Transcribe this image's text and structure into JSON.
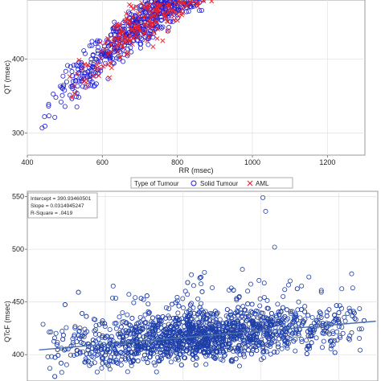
{
  "chart_data": [
    {
      "type": "scatter",
      "xlabel": "RR (msec)",
      "ylabel": "QT (msec)",
      "xlim": [
        400,
        1300
      ],
      "ylim": [
        270,
        480
      ],
      "xticks": [
        400,
        600,
        800,
        1000,
        1200
      ],
      "yticks": [
        300,
        400
      ],
      "grid": true,
      "legend": {
        "title": "Type of Tumour",
        "placement": "bottom"
      },
      "series": [
        {
          "name": "Solid Tumour",
          "marker": "circle-open",
          "color": "#1f1fd6",
          "trend": {
            "x_range": [
              430,
              1290
            ],
            "a": -6.9,
            "b": 0.905,
            "c": -0.000365,
            "spread_y": 20,
            "count": 1500
          }
        },
        {
          "name": "AML",
          "marker": "x",
          "color": "#e8212b",
          "trend": {
            "x_range": [
              480,
              1280
            ],
            "a": -6.9,
            "b": 0.905,
            "c": -0.000365,
            "spread_y": 24,
            "count": 700
          }
        }
      ]
    },
    {
      "type": "scatter",
      "xlabel": "",
      "ylabel": "QTcF (msec)",
      "xlim": [
        400,
        1300
      ],
      "ylim": [
        375,
        555
      ],
      "yticks": [
        400,
        450,
        500,
        550
      ],
      "grid": true,
      "stats": [
        "Intercept = 390.93460501",
        "Slope = 0.0314945247",
        "R-Square = .0419"
      ],
      "regression": {
        "intercept": 390.93460501,
        "slope": 0.0314945247
      },
      "series": [
        {
          "marker": "circle-open",
          "color": "#1f3fa8",
          "trend": {
            "x_range": [
              430,
              1290
            ],
            "spread_y": 16,
            "count": 2100
          },
          "outliers": [
            [
              1005,
              549
            ],
            [
              1035,
              502
            ],
            [
              1012,
              536
            ],
            [
              1155,
              461
            ],
            [
              1075,
              470
            ]
          ]
        }
      ]
    }
  ]
}
